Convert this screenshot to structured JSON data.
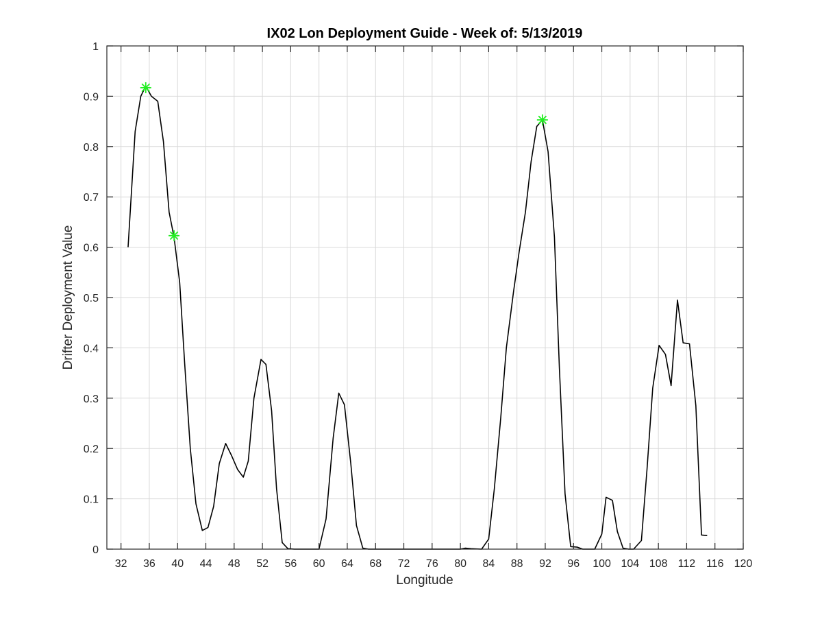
{
  "chart_data": {
    "type": "line",
    "title": "IX02 Lon Deployment Guide - Week of: 5/13/2019",
    "xlabel": "Longitude",
    "ylabel": "Drifter Deployment Value",
    "xlim": [
      30,
      120
    ],
    "ylim": [
      0,
      1
    ],
    "xticks": [
      32,
      36,
      40,
      44,
      48,
      52,
      56,
      60,
      64,
      68,
      72,
      76,
      80,
      84,
      88,
      92,
      96,
      100,
      104,
      108,
      112,
      116,
      120
    ],
    "yticks": [
      0,
      0.1,
      0.2,
      0.3,
      0.4,
      0.5,
      0.6,
      0.7,
      0.8,
      0.9,
      1
    ],
    "grid": true,
    "series": [
      {
        "color": "#000000",
        "x": [
          33,
          34,
          34.8,
          35.5,
          36.3,
          37.2,
          38,
          38.8,
          39.5,
          40.3,
          41,
          41.8,
          42.6,
          43.5,
          44.3,
          45.1,
          45.9,
          46.8,
          47.6,
          48.5,
          49.3,
          50,
          50.8,
          51.8,
          52.5,
          53.3,
          54,
          54.8,
          55.6,
          56.5,
          57,
          60,
          61,
          62,
          62.8,
          63.6,
          64.5,
          65.3,
          66.2,
          67,
          80,
          80.7,
          81.5,
          83,
          84,
          84.8,
          85.7,
          86.5,
          87.5,
          88.3,
          89.2,
          90,
          90.8,
          91.6,
          92.4,
          93.3,
          94,
          94.8,
          95.6,
          96.5,
          97.3,
          98,
          99,
          100,
          100.6,
          101.5,
          102.2,
          103,
          103.8,
          104.5,
          105.6,
          106.4,
          107.2,
          108.1,
          109,
          109.8,
          110.7,
          111.5,
          112.4,
          113.3,
          114.1,
          114.9
        ],
        "values": [
          0.6,
          0.83,
          0.9,
          0.92,
          0.9,
          0.89,
          0.81,
          0.67,
          0.62,
          0.53,
          0.37,
          0.2,
          0.09,
          0.037,
          0.043,
          0.085,
          0.17,
          0.21,
          0.187,
          0.158,
          0.143,
          0.175,
          0.3,
          0.377,
          0.367,
          0.275,
          0.12,
          0.013,
          0.001,
          0.0,
          0.0,
          0.0,
          0.06,
          0.22,
          0.31,
          0.287,
          0.17,
          0.047,
          0.002,
          0.0,
          0.0,
          0.002,
          0.001,
          0.0,
          0.02,
          0.12,
          0.26,
          0.4,
          0.51,
          0.59,
          0.67,
          0.77,
          0.84,
          0.853,
          0.79,
          0.62,
          0.36,
          0.11,
          0.005,
          0.004,
          0.0,
          0.0,
          0.0,
          0.03,
          0.103,
          0.097,
          0.035,
          0.002,
          0.0,
          0.0,
          0.017,
          0.16,
          0.32,
          0.405,
          0.387,
          0.325,
          0.495,
          0.41,
          0.408,
          0.285,
          0.028,
          0.027
        ]
      }
    ],
    "markers": {
      "color": "#22ee22",
      "points": [
        {
          "x": 35.5,
          "y": 0.917
        },
        {
          "x": 39.5,
          "y": 0.623
        },
        {
          "x": 91.6,
          "y": 0.853
        }
      ]
    }
  }
}
